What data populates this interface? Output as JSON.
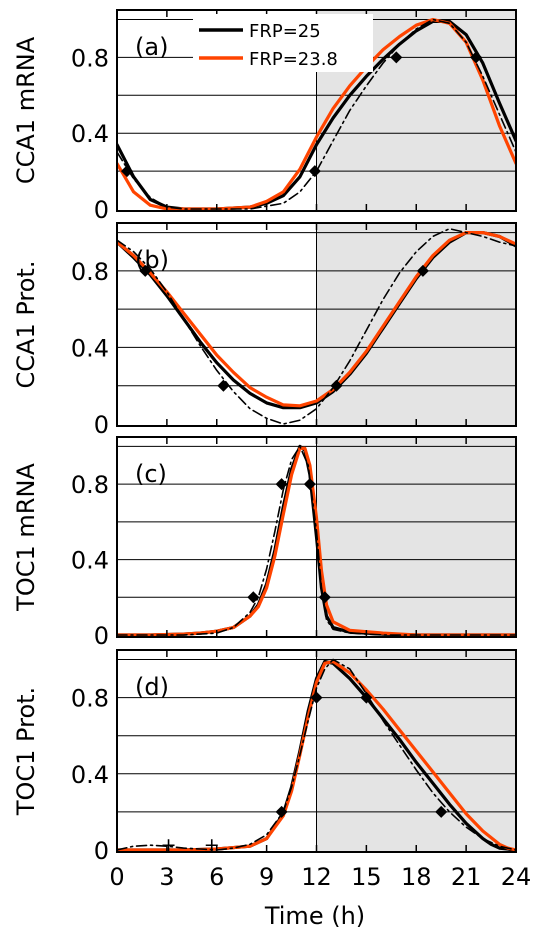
{
  "figure": {
    "xlabel": "Time (h)",
    "x_ticks": [
      0,
      3,
      6,
      9,
      12,
      15,
      18,
      21,
      24
    ],
    "x_tick_labels": [
      "0",
      "3",
      "6",
      "9",
      "12",
      "15",
      "18",
      "21",
      "24"
    ],
    "legend": [
      {
        "label": "FRP=25",
        "color": "#000000"
      },
      {
        "label": "FRP=23.8",
        "color": "#ff4400"
      }
    ],
    "shade_start_label": "12"
  },
  "chart_data": [
    {
      "type": "line",
      "panel_label": "(a)",
      "ylabel": "CCA1 mRNA",
      "xlim": [
        0,
        24
      ],
      "ylim": [
        0,
        1.05
      ],
      "y_ticks": [
        0,
        0.4,
        0.8
      ],
      "y_tick_labels": [
        "0",
        "0.4",
        "0.8"
      ],
      "shaded_interval": [
        12,
        24
      ],
      "series": [
        {
          "name": "FRP=25",
          "color": "#000000",
          "style": "solid",
          "x": [
            0,
            1,
            2,
            3,
            4,
            6,
            8,
            9,
            10,
            11,
            12,
            13,
            14,
            15,
            16,
            17,
            18,
            19,
            20,
            21,
            22,
            23,
            24
          ],
          "y": [
            0.34,
            0.17,
            0.05,
            0.01,
            0.0,
            0.0,
            0.01,
            0.03,
            0.07,
            0.17,
            0.34,
            0.48,
            0.6,
            0.7,
            0.79,
            0.87,
            0.94,
            0.99,
            0.99,
            0.92,
            0.77,
            0.56,
            0.36
          ]
        },
        {
          "name": "FRP=23.8",
          "color": "#ff4400",
          "style": "solid",
          "x": [
            0,
            1,
            2,
            3,
            4,
            6,
            8,
            9,
            10,
            11,
            12,
            13,
            14,
            15,
            16,
            17,
            18,
            19,
            20,
            21,
            22,
            23,
            24
          ],
          "y": [
            0.24,
            0.09,
            0.02,
            0.0,
            0.0,
            0.0,
            0.01,
            0.04,
            0.09,
            0.21,
            0.38,
            0.53,
            0.65,
            0.75,
            0.84,
            0.91,
            0.97,
            1.0,
            0.98,
            0.88,
            0.68,
            0.44,
            0.24
          ]
        },
        {
          "name": "",
          "color": "#000000",
          "style": "dashdot",
          "x": [
            0,
            1,
            2,
            3,
            4,
            6,
            8,
            10,
            11,
            12,
            13,
            14,
            15,
            16,
            17,
            18,
            19,
            20,
            21,
            22,
            23,
            24
          ],
          "y": [
            0.3,
            0.16,
            0.06,
            0.01,
            0.0,
            0.0,
            0.0,
            0.03,
            0.09,
            0.2,
            0.36,
            0.52,
            0.65,
            0.77,
            0.87,
            0.95,
            1.0,
            0.98,
            0.88,
            0.7,
            0.5,
            0.3
          ]
        }
      ],
      "markers": {
        "x": [
          0.6,
          11.9,
          16.8,
          21.6
        ],
        "y": [
          0.2,
          0.2,
          0.8,
          0.8
        ]
      }
    },
    {
      "type": "line",
      "panel_label": "(b)",
      "ylabel": "CCA1 Prot.",
      "xlim": [
        0,
        24
      ],
      "ylim": [
        0,
        1.05
      ],
      "y_ticks": [
        0,
        0.4,
        0.8
      ],
      "y_tick_labels": [
        "0",
        "0.4",
        "0.8"
      ],
      "shaded_interval": [
        12,
        24
      ],
      "series": [
        {
          "name": "FRP=25",
          "color": "#000000",
          "style": "solid",
          "x": [
            0,
            1,
            2,
            3,
            4,
            5,
            6,
            7,
            8,
            9,
            10,
            11,
            12,
            13,
            14,
            15,
            16,
            17,
            18,
            19,
            20,
            21,
            22,
            23,
            24
          ],
          "y": [
            0.95,
            0.87,
            0.78,
            0.67,
            0.55,
            0.43,
            0.32,
            0.23,
            0.16,
            0.11,
            0.085,
            0.085,
            0.11,
            0.17,
            0.26,
            0.37,
            0.5,
            0.63,
            0.76,
            0.87,
            0.95,
            1.0,
            1.0,
            0.98,
            0.93
          ]
        },
        {
          "name": "FRP=23.8",
          "color": "#ff4400",
          "style": "solid",
          "x": [
            0,
            1,
            2,
            3,
            4,
            5,
            6,
            7,
            8,
            9,
            10,
            11,
            12,
            13,
            14,
            15,
            16,
            17,
            18,
            19,
            20,
            21,
            22,
            23,
            24
          ],
          "y": [
            0.95,
            0.88,
            0.79,
            0.69,
            0.58,
            0.47,
            0.36,
            0.27,
            0.19,
            0.14,
            0.1,
            0.095,
            0.12,
            0.18,
            0.27,
            0.38,
            0.51,
            0.64,
            0.77,
            0.88,
            0.96,
            1.0,
            1.0,
            0.98,
            0.94
          ]
        },
        {
          "name": "",
          "color": "#000000",
          "style": "dashdot",
          "x": [
            0,
            1,
            2,
            3,
            4,
            5,
            6,
            7,
            8,
            9,
            10,
            11,
            12,
            13,
            14,
            15,
            16,
            17,
            18,
            19,
            20,
            21,
            22,
            23,
            24
          ],
          "y": [
            0.96,
            0.9,
            0.81,
            0.69,
            0.55,
            0.41,
            0.28,
            0.17,
            0.08,
            0.03,
            0.0,
            0.02,
            0.08,
            0.19,
            0.33,
            0.49,
            0.65,
            0.79,
            0.9,
            0.98,
            1.02,
            1.0,
            0.98,
            0.95,
            0.93
          ]
        }
      ],
      "markers": {
        "x": [
          1.7,
          6.4,
          13.2,
          18.4
        ],
        "y": [
          0.8,
          0.2,
          0.2,
          0.8
        ]
      }
    },
    {
      "type": "line",
      "panel_label": "(c)",
      "ylabel": "TOC1 mRNA",
      "xlim": [
        0,
        24
      ],
      "ylim": [
        0,
        1.05
      ],
      "y_ticks": [
        0,
        0.4,
        0.8
      ],
      "y_tick_labels": [
        "0",
        "0.4",
        "0.8"
      ],
      "shaded_interval": [
        12,
        24
      ],
      "series": [
        {
          "name": "FRP=25",
          "color": "#000000",
          "style": "solid",
          "x": [
            0,
            2,
            4,
            5,
            6,
            7,
            8,
            8.5,
            9,
            9.5,
            10,
            10.5,
            11,
            11.3,
            11.6,
            12,
            12.3,
            12.6,
            13,
            14,
            16,
            18,
            20,
            24
          ],
          "y": [
            0.0,
            0.0,
            0.005,
            0.01,
            0.02,
            0.04,
            0.1,
            0.16,
            0.27,
            0.45,
            0.68,
            0.88,
            1.0,
            0.98,
            0.85,
            0.52,
            0.25,
            0.1,
            0.04,
            0.015,
            0.005,
            0.0,
            0.0,
            0.0
          ]
        },
        {
          "name": "FRP=23.8",
          "color": "#ff4400",
          "style": "solid",
          "x": [
            0,
            2,
            4,
            5,
            6,
            7,
            8,
            8.5,
            9,
            9.5,
            10,
            10.5,
            11,
            11.3,
            11.6,
            12,
            12.3,
            12.6,
            13,
            14,
            16,
            18,
            20,
            24
          ],
          "y": [
            0.0,
            0.0,
            0.005,
            0.01,
            0.02,
            0.04,
            0.1,
            0.15,
            0.25,
            0.42,
            0.64,
            0.85,
            0.99,
            0.99,
            0.9,
            0.62,
            0.34,
            0.16,
            0.07,
            0.025,
            0.01,
            0.0,
            0.0,
            0.0
          ]
        },
        {
          "name": "",
          "color": "#000000",
          "style": "dashdot",
          "x": [
            0,
            2,
            4,
            6,
            7,
            8,
            8.5,
            9,
            9.5,
            10,
            10.5,
            11,
            11.5,
            12,
            12.3,
            12.6,
            13,
            14,
            16,
            24
          ],
          "y": [
            0.0,
            0.0,
            0.0,
            0.01,
            0.04,
            0.12,
            0.2,
            0.35,
            0.55,
            0.77,
            0.93,
            1.0,
            0.9,
            0.55,
            0.25,
            0.08,
            0.03,
            0.01,
            0.0,
            0.0
          ]
        }
      ],
      "markers": {
        "x": [
          8.2,
          9.9,
          11.6,
          12.5
        ],
        "y": [
          0.2,
          0.8,
          0.8,
          0.2
        ]
      }
    },
    {
      "type": "line",
      "panel_label": "(d)",
      "ylabel": "TOC1 Prot.",
      "xlim": [
        0,
        24
      ],
      "ylim": [
        0,
        1.05
      ],
      "y_ticks": [
        0,
        0.4,
        0.8
      ],
      "y_tick_labels": [
        "0",
        "0.4",
        "0.8"
      ],
      "shaded_interval": [
        12,
        24
      ],
      "series": [
        {
          "name": "FRP=25",
          "color": "#000000",
          "style": "solid",
          "x": [
            0,
            4,
            6,
            8,
            9,
            10,
            10.5,
            11,
            11.5,
            12,
            12.5,
            13,
            14,
            15,
            16,
            17,
            18,
            19,
            20,
            21,
            22,
            22.5,
            23,
            24
          ],
          "y": [
            0.0,
            0.0,
            0.005,
            0.02,
            0.06,
            0.19,
            0.33,
            0.52,
            0.73,
            0.9,
            0.99,
            0.98,
            0.9,
            0.8,
            0.69,
            0.58,
            0.46,
            0.35,
            0.24,
            0.14,
            0.06,
            0.03,
            0.01,
            0.0
          ]
        },
        {
          "name": "FRP=23.8",
          "color": "#ff4400",
          "style": "solid",
          "x": [
            0,
            4,
            6,
            8,
            9,
            10,
            10.5,
            11,
            11.5,
            12,
            12.5,
            13,
            14,
            15,
            16,
            17,
            18,
            19,
            20,
            21,
            22,
            23,
            23.5,
            24
          ],
          "y": [
            0.0,
            0.0,
            0.005,
            0.02,
            0.06,
            0.18,
            0.31,
            0.5,
            0.7,
            0.88,
            0.98,
            0.99,
            0.93,
            0.84,
            0.74,
            0.63,
            0.52,
            0.41,
            0.3,
            0.19,
            0.1,
            0.03,
            0.01,
            0.0
          ]
        },
        {
          "name": "",
          "color": "#000000",
          "style": "dashdot",
          "x": [
            0,
            1,
            2,
            3,
            4,
            5,
            6,
            7,
            8,
            9,
            10,
            10.5,
            11,
            11.5,
            12,
            12.5,
            13,
            14,
            15,
            16,
            17,
            18,
            19,
            20,
            21,
            22,
            23,
            24
          ],
          "y": [
            0.0,
            0.02,
            0.025,
            0.02,
            0.01,
            0.005,
            0.0,
            0.01,
            0.03,
            0.08,
            0.2,
            0.33,
            0.5,
            0.68,
            0.85,
            0.95,
            1.0,
            0.95,
            0.82,
            0.68,
            0.55,
            0.42,
            0.3,
            0.2,
            0.12,
            0.06,
            0.02,
            0.0
          ]
        }
      ],
      "markers": {
        "x": [
          9.9,
          12.0,
          15.0,
          19.5
        ],
        "y": [
          0.2,
          0.8,
          0.8,
          0.2
        ]
      },
      "plus_markers": {
        "x": [
          3.1,
          5.7
        ],
        "y": [
          0.025,
          0.025
        ]
      }
    }
  ]
}
